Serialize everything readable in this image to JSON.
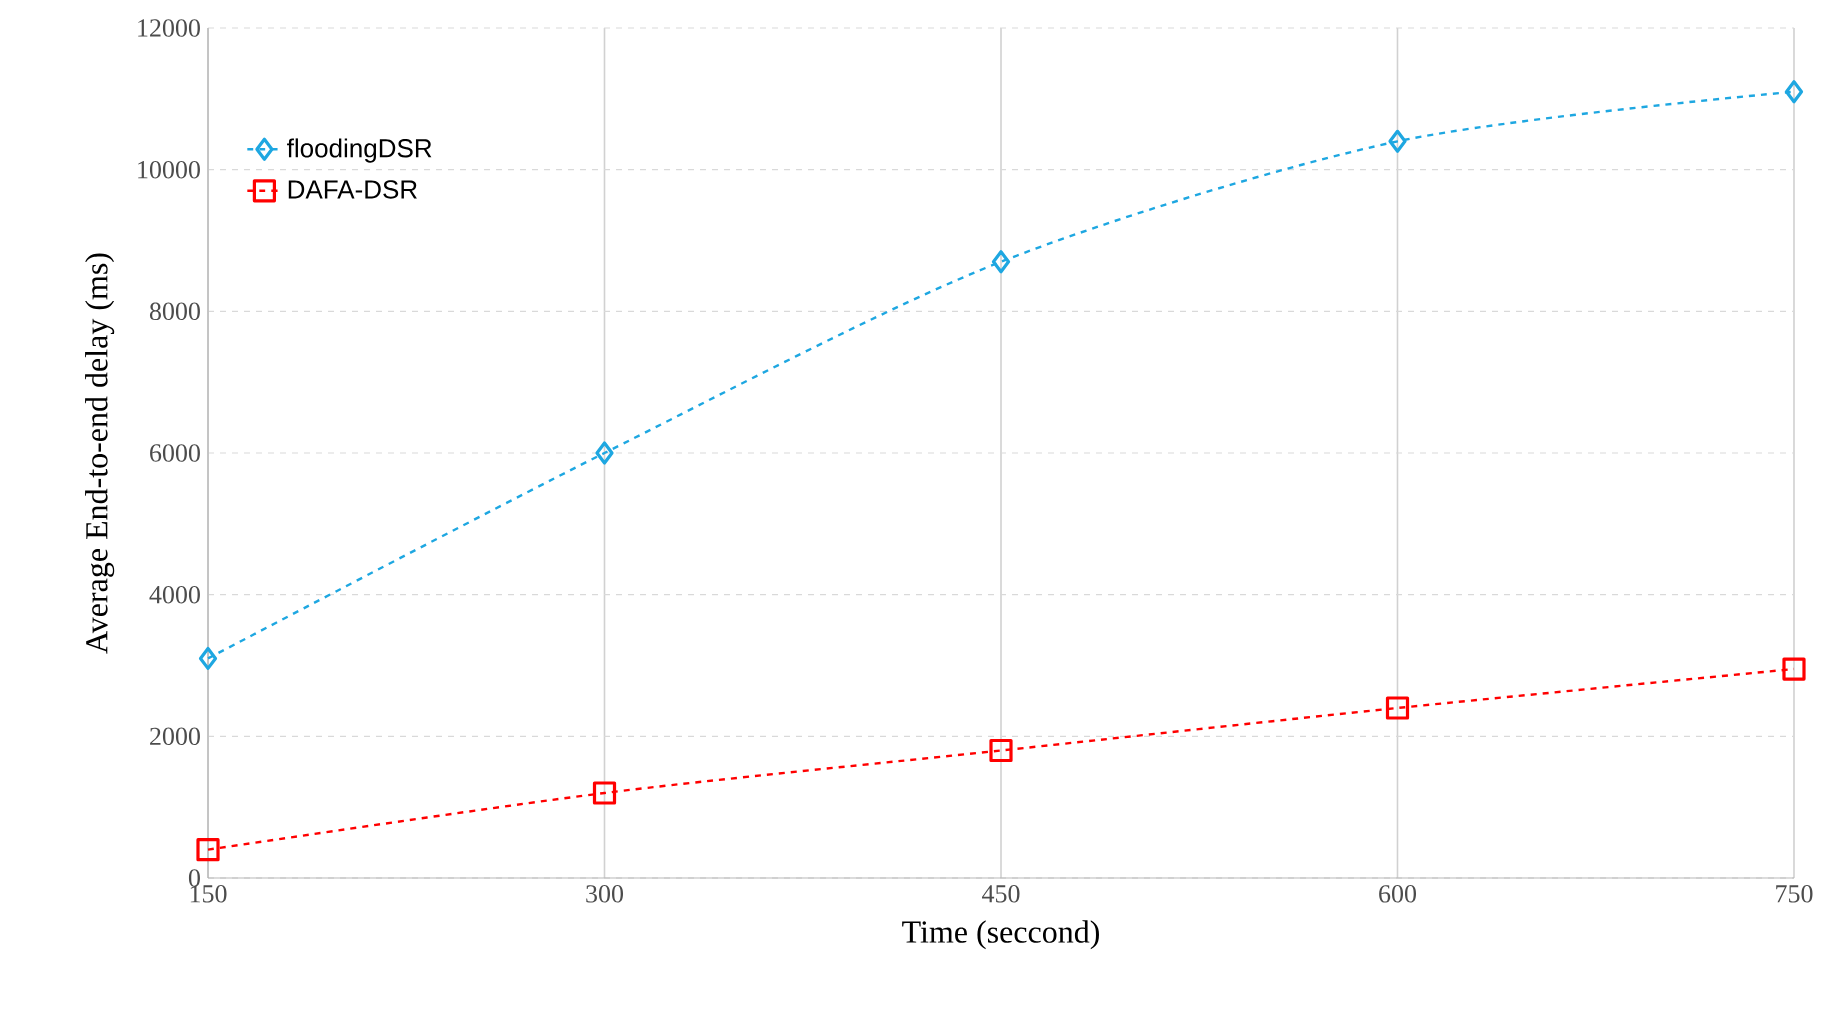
{
  "chart_data": {
    "type": "line",
    "xlabel": "Time (seccond)",
    "ylabel": "Average End-to-end delay (ms)",
    "x": [
      150,
      300,
      450,
      600,
      750
    ],
    "series": [
      {
        "name": "floodingDSR",
        "color": "#1ea7e1",
        "marker": "diamond",
        "values": [
          3100,
          6000,
          8700,
          10400,
          11100
        ]
      },
      {
        "name": "DAFA-DSR",
        "color": "#ff0000",
        "marker": "square",
        "values": [
          400,
          1200,
          1800,
          2400,
          2950
        ]
      }
    ],
    "xlim": [
      150,
      750
    ],
    "xticks": [
      150,
      300,
      450,
      600,
      750
    ],
    "ylim": [
      0,
      12000
    ],
    "yticks": [
      0,
      2000,
      4000,
      6000,
      8000,
      10000,
      12000
    ],
    "grid": true,
    "legend": "top left",
    "line_style": "dashed"
  }
}
